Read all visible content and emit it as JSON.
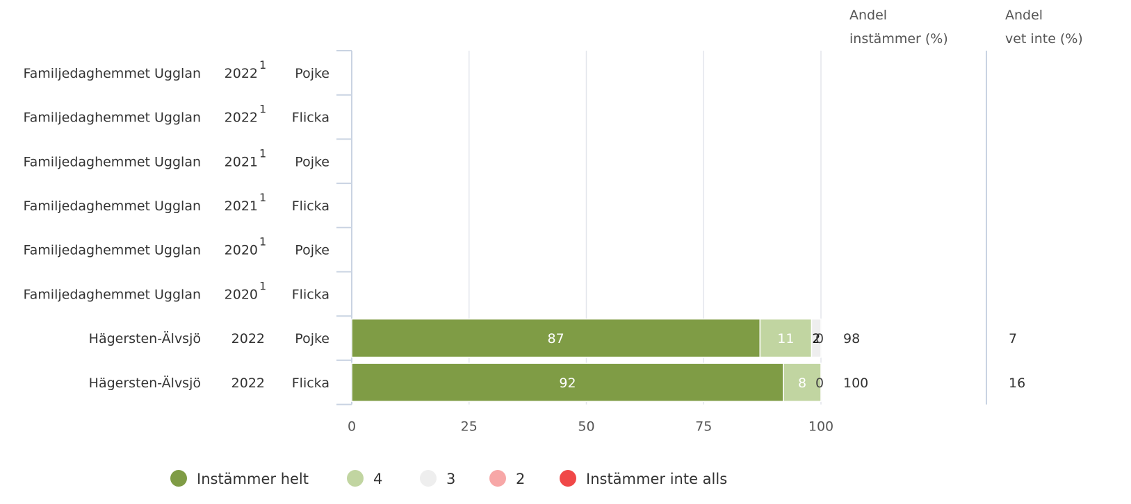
{
  "colors": {
    "instammer_helt": "#7f9c45",
    "four": "#c1d5a1",
    "three": "#eeeeee",
    "two": "#f7a7a7",
    "instammer_inte_alls": "#f04848",
    "grid": "#e3e6ec",
    "text": "#333333"
  },
  "headers": {
    "andel_instammer_line1": "Andel",
    "andel_instammer_line2": "instämmer (%)",
    "andel_vet_inte_line1": "Andel",
    "andel_vet_inte_line2": "vet inte (%)"
  },
  "chart_data": {
    "type": "bar",
    "orientation": "horizontal",
    "stacked": true,
    "xlim": [
      0,
      100
    ],
    "x_ticks": [
      "0",
      "25",
      "50",
      "75",
      "100"
    ],
    "grid": true,
    "legend_position": "bottom",
    "rows": [
      {
        "unit": "Familjedaghemmet Ugglan",
        "year": "2022",
        "footnote": "1",
        "gender": "Pojke",
        "values": [
          null,
          null,
          null,
          null,
          null
        ],
        "labels": [
          "",
          "",
          "",
          "",
          ""
        ],
        "andel_instammer": "",
        "andel_vet_inte": ""
      },
      {
        "unit": "Familjedaghemmet Ugglan",
        "year": "2022",
        "footnote": "1",
        "gender": "Flicka",
        "values": [
          null,
          null,
          null,
          null,
          null
        ],
        "labels": [
          "",
          "",
          "",
          "",
          ""
        ],
        "andel_instammer": "",
        "andel_vet_inte": ""
      },
      {
        "unit": "Familjedaghemmet Ugglan",
        "year": "2021",
        "footnote": "1",
        "gender": "Pojke",
        "values": [
          null,
          null,
          null,
          null,
          null
        ],
        "labels": [
          "",
          "",
          "",
          "",
          ""
        ],
        "andel_instammer": "",
        "andel_vet_inte": ""
      },
      {
        "unit": "Familjedaghemmet Ugglan",
        "year": "2021",
        "footnote": "1",
        "gender": "Flicka",
        "values": [
          null,
          null,
          null,
          null,
          null
        ],
        "labels": [
          "",
          "",
          "",
          "",
          ""
        ],
        "andel_instammer": "",
        "andel_vet_inte": ""
      },
      {
        "unit": "Familjedaghemmet Ugglan",
        "year": "2020",
        "footnote": "1",
        "gender": "Pojke",
        "values": [
          null,
          null,
          null,
          null,
          null
        ],
        "labels": [
          "",
          "",
          "",
          "",
          ""
        ],
        "andel_instammer": "",
        "andel_vet_inte": ""
      },
      {
        "unit": "Familjedaghemmet Ugglan",
        "year": "2020",
        "footnote": "1",
        "gender": "Flicka",
        "values": [
          null,
          null,
          null,
          null,
          null
        ],
        "labels": [
          "",
          "",
          "",
          "",
          ""
        ],
        "andel_instammer": "",
        "andel_vet_inte": ""
      },
      {
        "unit": "Hägersten-Älvsjö",
        "year": "2022",
        "footnote": "",
        "gender": "Pojke",
        "values": [
          87,
          11,
          2,
          0,
          0
        ],
        "labels": [
          "87",
          "11",
          "2",
          "0",
          ""
        ],
        "andel_instammer": "98",
        "andel_vet_inte": "7"
      },
      {
        "unit": "Hägersten-Älvsjö",
        "year": "2022",
        "footnote": "",
        "gender": "Flicka",
        "values": [
          92,
          8,
          0,
          0,
          0
        ],
        "labels": [
          "92",
          "8",
          "0",
          "",
          ""
        ],
        "andel_instammer": "100",
        "andel_vet_inte": "16"
      }
    ],
    "series": [
      {
        "name": "Instämmer helt",
        "color_key": "instammer_helt"
      },
      {
        "name": "4",
        "color_key": "four"
      },
      {
        "name": "3",
        "color_key": "three"
      },
      {
        "name": "2",
        "color_key": "two"
      },
      {
        "name": "Instämmer inte alls",
        "color_key": "instammer_inte_alls"
      }
    ]
  }
}
